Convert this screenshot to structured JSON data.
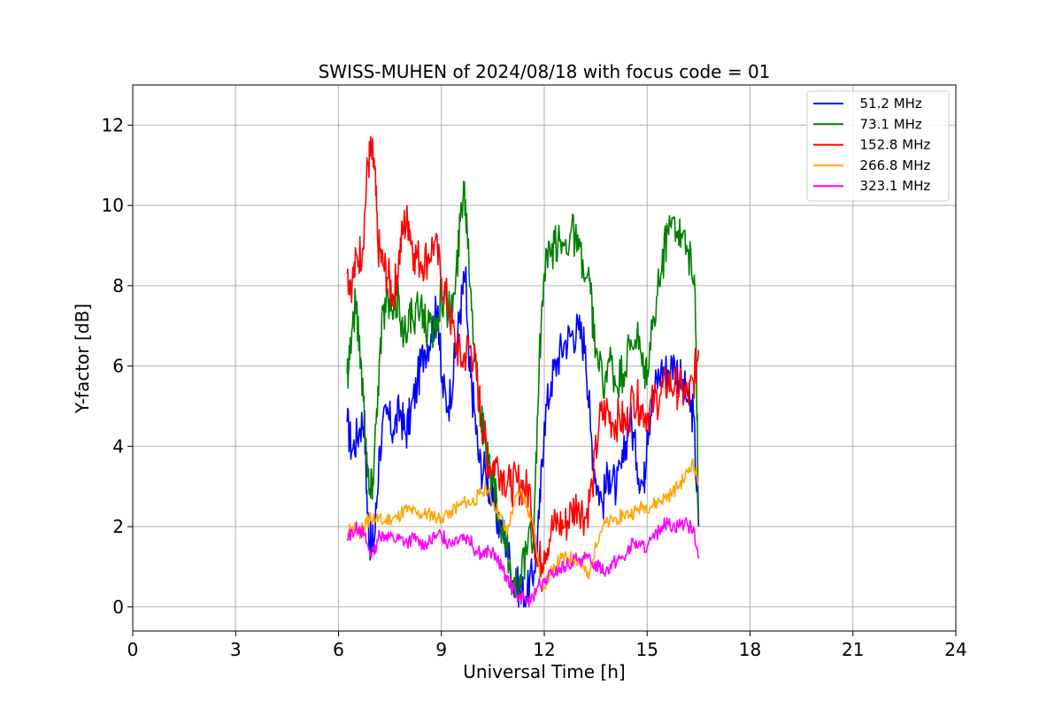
{
  "chart_data": {
    "type": "line",
    "title": "SWISS-MUHEN of 2024/08/18 with focus code = 01",
    "xlabel": "Universal Time [h]",
    "ylabel": "Y-factor [dB]",
    "xlim": [
      0,
      24
    ],
    "ylim": [
      -0.6,
      13.0
    ],
    "xticks": [
      0,
      3,
      6,
      9,
      12,
      15,
      18,
      21,
      24
    ],
    "yticks": [
      0,
      2,
      4,
      6,
      8,
      10,
      12
    ],
    "grid": true,
    "legend_position": "top-right",
    "series": [
      {
        "name": "  51.2 MHz",
        "color": "#0000ff",
        "points": [
          [
            6.25,
            4.6
          ],
          [
            6.4,
            3.9
          ],
          [
            6.6,
            4.4
          ],
          [
            6.75,
            4.8
          ],
          [
            6.85,
            2.2
          ],
          [
            6.95,
            1.5
          ],
          [
            7.05,
            1.7
          ],
          [
            7.2,
            4.0
          ],
          [
            7.4,
            4.8
          ],
          [
            7.6,
            4.4
          ],
          [
            7.8,
            4.9
          ],
          [
            7.95,
            4.3
          ],
          [
            8.1,
            4.8
          ],
          [
            8.3,
            5.6
          ],
          [
            8.5,
            6.4
          ],
          [
            8.7,
            6.8
          ],
          [
            8.9,
            7.5
          ],
          [
            9.0,
            5.6
          ],
          [
            9.2,
            5.0
          ],
          [
            9.4,
            6.2
          ],
          [
            9.55,
            7.4
          ],
          [
            9.7,
            8.3
          ],
          [
            9.8,
            6.0
          ],
          [
            9.95,
            5.0
          ],
          [
            10.1,
            3.6
          ],
          [
            10.3,
            3.3
          ],
          [
            10.5,
            2.6
          ],
          [
            10.7,
            2.0
          ],
          [
            10.9,
            1.6
          ],
          [
            11.1,
            0.6
          ],
          [
            11.3,
            0.4
          ],
          [
            11.5,
            0.3
          ],
          [
            11.7,
            0.9
          ],
          [
            11.85,
            2.2
          ],
          [
            12.0,
            4.6
          ],
          [
            12.2,
            5.6
          ],
          [
            12.4,
            6.2
          ],
          [
            12.6,
            6.6
          ],
          [
            12.8,
            6.8
          ],
          [
            13.0,
            6.9
          ],
          [
            13.2,
            6.5
          ],
          [
            13.35,
            4.4
          ],
          [
            13.5,
            3.2
          ],
          [
            13.7,
            2.6
          ],
          [
            13.9,
            3.4
          ],
          [
            14.1,
            2.9
          ],
          [
            14.3,
            3.6
          ],
          [
            14.5,
            4.8
          ],
          [
            14.7,
            3.6
          ],
          [
            14.9,
            3.0
          ],
          [
            15.0,
            4.4
          ],
          [
            15.2,
            5.4
          ],
          [
            15.4,
            5.9
          ],
          [
            15.6,
            5.9
          ],
          [
            15.8,
            6.1
          ],
          [
            16.0,
            5.6
          ],
          [
            16.2,
            5.1
          ],
          [
            16.35,
            4.8
          ],
          [
            16.5,
            2.0
          ]
        ]
      },
      {
        "name": "  73.1 MHz",
        "color": "#008000",
        "points": [
          [
            6.25,
            5.8
          ],
          [
            6.35,
            6.6
          ],
          [
            6.5,
            7.6
          ],
          [
            6.65,
            6.2
          ],
          [
            6.8,
            4.2
          ],
          [
            6.9,
            2.8
          ],
          [
            7.0,
            3.2
          ],
          [
            7.15,
            5.5
          ],
          [
            7.3,
            7.4
          ],
          [
            7.45,
            7.6
          ],
          [
            7.6,
            7.2
          ],
          [
            7.75,
            7.8
          ],
          [
            7.9,
            6.6
          ],
          [
            8.05,
            7.4
          ],
          [
            8.2,
            7.0
          ],
          [
            8.4,
            7.6
          ],
          [
            8.6,
            6.9
          ],
          [
            8.8,
            6.9
          ],
          [
            9.0,
            7.9
          ],
          [
            9.2,
            7.3
          ],
          [
            9.4,
            7.8
          ],
          [
            9.55,
            9.6
          ],
          [
            9.65,
            10.6
          ],
          [
            9.75,
            9.5
          ],
          [
            9.9,
            7.4
          ],
          [
            10.0,
            6.2
          ],
          [
            10.15,
            4.8
          ],
          [
            10.3,
            3.9
          ],
          [
            10.5,
            3.1
          ],
          [
            10.7,
            2.0
          ],
          [
            10.9,
            1.4
          ],
          [
            11.1,
            0.5
          ],
          [
            11.3,
            0.8
          ],
          [
            11.5,
            1.3
          ],
          [
            11.7,
            2.0
          ],
          [
            11.85,
            6.0
          ],
          [
            12.0,
            8.3
          ],
          [
            12.2,
            8.8
          ],
          [
            12.4,
            9.1
          ],
          [
            12.6,
            9.0
          ],
          [
            12.8,
            9.5
          ],
          [
            13.0,
            8.9
          ],
          [
            13.2,
            8.2
          ],
          [
            13.35,
            7.8
          ],
          [
            13.5,
            6.3
          ],
          [
            13.7,
            5.6
          ],
          [
            13.9,
            6.1
          ],
          [
            14.1,
            5.5
          ],
          [
            14.3,
            5.8
          ],
          [
            14.5,
            6.4
          ],
          [
            14.7,
            6.7
          ],
          [
            14.9,
            5.7
          ],
          [
            15.0,
            5.9
          ],
          [
            15.2,
            7.2
          ],
          [
            15.4,
            8.3
          ],
          [
            15.6,
            9.4
          ],
          [
            15.8,
            9.7
          ],
          [
            16.0,
            9.3
          ],
          [
            16.2,
            8.9
          ],
          [
            16.4,
            7.8
          ],
          [
            16.5,
            2.2
          ]
        ]
      },
      {
        "name": "  152.8 MHz",
        "color": "#ff0000",
        "points": [
          [
            6.25,
            8.3
          ],
          [
            6.4,
            8.1
          ],
          [
            6.55,
            8.7
          ],
          [
            6.7,
            8.9
          ],
          [
            6.85,
            11.0
          ],
          [
            6.95,
            11.3
          ],
          [
            7.05,
            10.9
          ],
          [
            7.15,
            9.0
          ],
          [
            7.3,
            8.5
          ],
          [
            7.45,
            8.2
          ],
          [
            7.6,
            7.7
          ],
          [
            7.75,
            8.6
          ],
          [
            7.9,
            9.5
          ],
          [
            8.05,
            9.6
          ],
          [
            8.2,
            8.8
          ],
          [
            8.4,
            8.6
          ],
          [
            8.6,
            8.7
          ],
          [
            8.8,
            9.1
          ],
          [
            9.0,
            8.2
          ],
          [
            9.2,
            7.5
          ],
          [
            9.4,
            6.6
          ],
          [
            9.6,
            6.1
          ],
          [
            9.8,
            6.5
          ],
          [
            9.95,
            6.2
          ],
          [
            10.1,
            5.2
          ],
          [
            10.25,
            4.2
          ],
          [
            10.4,
            3.5
          ],
          [
            10.6,
            3.6
          ],
          [
            10.8,
            3.3
          ],
          [
            11.0,
            3.0
          ],
          [
            11.2,
            3.1
          ],
          [
            11.4,
            3.0
          ],
          [
            11.6,
            2.8
          ],
          [
            11.8,
            1.0
          ],
          [
            12.0,
            1.4
          ],
          [
            12.2,
            1.9
          ],
          [
            12.4,
            2.1
          ],
          [
            12.6,
            2.0
          ],
          [
            12.8,
            2.4
          ],
          [
            13.0,
            2.6
          ],
          [
            13.2,
            2.2
          ],
          [
            13.4,
            3.0
          ],
          [
            13.6,
            4.6
          ],
          [
            13.8,
            4.9
          ],
          [
            14.0,
            4.6
          ],
          [
            14.2,
            4.7
          ],
          [
            14.4,
            4.5
          ],
          [
            14.6,
            5.3
          ],
          [
            14.8,
            5.0
          ],
          [
            15.0,
            4.8
          ],
          [
            15.2,
            5.1
          ],
          [
            15.4,
            5.3
          ],
          [
            15.6,
            5.6
          ],
          [
            15.8,
            5.5
          ],
          [
            16.0,
            5.4
          ],
          [
            16.2,
            5.2
          ],
          [
            16.35,
            5.6
          ],
          [
            16.5,
            6.4
          ]
        ]
      },
      {
        "name": "  266.8 MHz",
        "color": "#ffa500",
        "points": [
          [
            6.25,
            1.8
          ],
          [
            6.4,
            2.0
          ],
          [
            6.6,
            1.8
          ],
          [
            6.75,
            2.0
          ],
          [
            6.9,
            2.2
          ],
          [
            7.1,
            2.2
          ],
          [
            7.3,
            2.1
          ],
          [
            7.5,
            2.2
          ],
          [
            7.7,
            2.2
          ],
          [
            7.9,
            2.4
          ],
          [
            8.1,
            2.4
          ],
          [
            8.3,
            2.3
          ],
          [
            8.5,
            2.3
          ],
          [
            8.7,
            2.3
          ],
          [
            8.9,
            2.2
          ],
          [
            9.1,
            2.3
          ],
          [
            9.3,
            2.4
          ],
          [
            9.5,
            2.5
          ],
          [
            9.7,
            2.6
          ],
          [
            9.9,
            2.6
          ],
          [
            10.1,
            2.8
          ],
          [
            10.3,
            3.0
          ],
          [
            10.5,
            2.6
          ],
          [
            10.7,
            2.3
          ],
          [
            10.9,
            1.8
          ],
          [
            11.1,
            2.5
          ],
          [
            11.3,
            2.9
          ],
          [
            11.5,
            2.5
          ],
          [
            11.7,
            2.0
          ],
          [
            11.9,
            0.5
          ],
          [
            12.1,
            0.7
          ],
          [
            12.3,
            1.0
          ],
          [
            12.5,
            1.2
          ],
          [
            12.7,
            1.2
          ],
          [
            12.9,
            1.2
          ],
          [
            13.1,
            1.0
          ],
          [
            13.3,
            0.7
          ],
          [
            13.5,
            1.6
          ],
          [
            13.7,
            2.0
          ],
          [
            13.9,
            2.1
          ],
          [
            14.1,
            2.2
          ],
          [
            14.3,
            2.3
          ],
          [
            14.5,
            2.3
          ],
          [
            14.7,
            2.4
          ],
          [
            14.9,
            2.5
          ],
          [
            15.1,
            2.5
          ],
          [
            15.3,
            2.6
          ],
          [
            15.5,
            2.7
          ],
          [
            15.7,
            2.8
          ],
          [
            15.9,
            3.0
          ],
          [
            16.1,
            3.2
          ],
          [
            16.3,
            3.6
          ],
          [
            16.5,
            3.1
          ]
        ]
      },
      {
        "name": "  323.1 MHz",
        "color": "#ff00ff",
        "points": [
          [
            6.25,
            1.7
          ],
          [
            6.4,
            1.9
          ],
          [
            6.6,
            2.0
          ],
          [
            6.75,
            1.8
          ],
          [
            6.9,
            1.4
          ],
          [
            7.05,
            1.3
          ],
          [
            7.2,
            1.8
          ],
          [
            7.4,
            1.8
          ],
          [
            7.6,
            1.7
          ],
          [
            7.8,
            1.7
          ],
          [
            8.0,
            1.6
          ],
          [
            8.2,
            1.7
          ],
          [
            8.4,
            1.6
          ],
          [
            8.6,
            1.6
          ],
          [
            8.8,
            1.7
          ],
          [
            9.0,
            1.8
          ],
          [
            9.2,
            1.6
          ],
          [
            9.4,
            1.7
          ],
          [
            9.6,
            1.8
          ],
          [
            9.8,
            1.7
          ],
          [
            10.0,
            1.4
          ],
          [
            10.2,
            1.3
          ],
          [
            10.4,
            1.4
          ],
          [
            10.6,
            1.2
          ],
          [
            10.8,
            0.9
          ],
          [
            11.0,
            0.6
          ],
          [
            11.2,
            0.3
          ],
          [
            11.4,
            0.2
          ],
          [
            11.6,
            0.1
          ],
          [
            11.8,
            0.5
          ],
          [
            12.0,
            0.6
          ],
          [
            12.2,
            0.8
          ],
          [
            12.4,
            0.9
          ],
          [
            12.6,
            1.0
          ],
          [
            12.8,
            1.1
          ],
          [
            13.0,
            1.2
          ],
          [
            13.2,
            1.2
          ],
          [
            13.4,
            1.1
          ],
          [
            13.6,
            1.0
          ],
          [
            13.8,
            0.9
          ],
          [
            14.0,
            1.1
          ],
          [
            14.2,
            1.2
          ],
          [
            14.4,
            1.3
          ],
          [
            14.6,
            1.6
          ],
          [
            14.8,
            1.5
          ],
          [
            15.0,
            1.5
          ],
          [
            15.2,
            1.7
          ],
          [
            15.4,
            2.0
          ],
          [
            15.6,
            2.1
          ],
          [
            15.8,
            2.0
          ],
          [
            16.0,
            2.1
          ],
          [
            16.2,
            2.0
          ],
          [
            16.35,
            2.0
          ],
          [
            16.5,
            1.2
          ]
        ]
      }
    ]
  }
}
